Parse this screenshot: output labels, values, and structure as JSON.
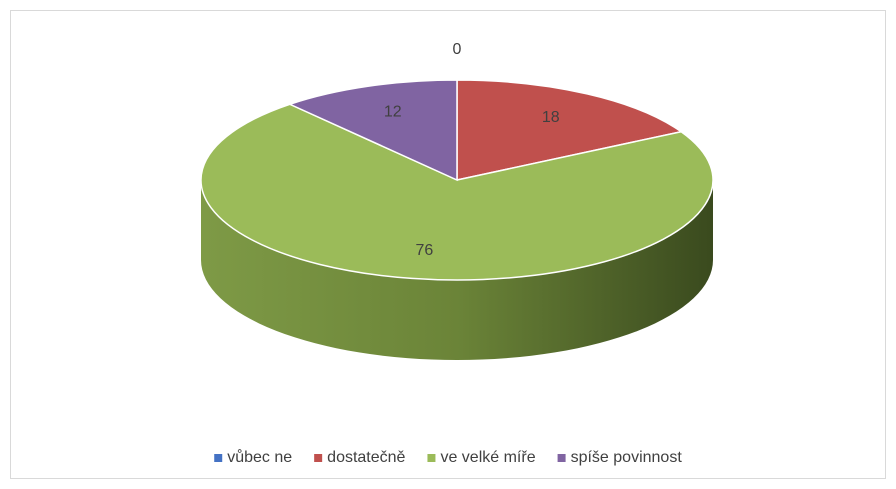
{
  "chart_data": {
    "type": "pie",
    "categories": [
      "vůbec ne",
      "dostatečně",
      "ve velké míře",
      "spíše povinnost"
    ],
    "values": [
      0,
      18,
      76,
      12
    ],
    "colors": [
      "#4472c4",
      "#c0504d",
      "#9bbb59",
      "#8064a2"
    ],
    "legend": "bottom"
  }
}
